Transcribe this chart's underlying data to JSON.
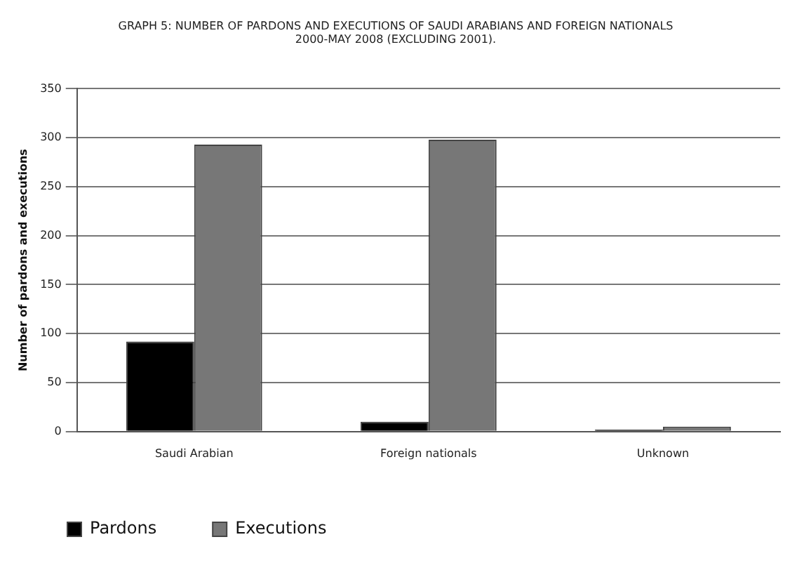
{
  "chart_data": {
    "type": "bar",
    "title": [
      "GRAPH 5: NUMBER OF PARDONS AND EXECUTIONS OF SAUDI ARABIANS AND FOREIGN NATIONALS",
      "2000-MAY 2008 (EXCLUDING 2001)."
    ],
    "ylabel": "Number of pardons and executions",
    "categories": [
      "Saudi Arabian",
      "Foreign nationals",
      "Unknown"
    ],
    "series": [
      {
        "name": "Pardons",
        "color": "#000000",
        "values": [
          92,
          10,
          2
        ]
      },
      {
        "name": "Executions",
        "color": "#777777",
        "values": [
          293,
          298,
          5
        ]
      }
    ],
    "ylim": [
      0,
      350
    ],
    "yticks": [
      0,
      50,
      100,
      150,
      200,
      250,
      300,
      350
    ],
    "grid": "y",
    "legend": "bottom left"
  }
}
